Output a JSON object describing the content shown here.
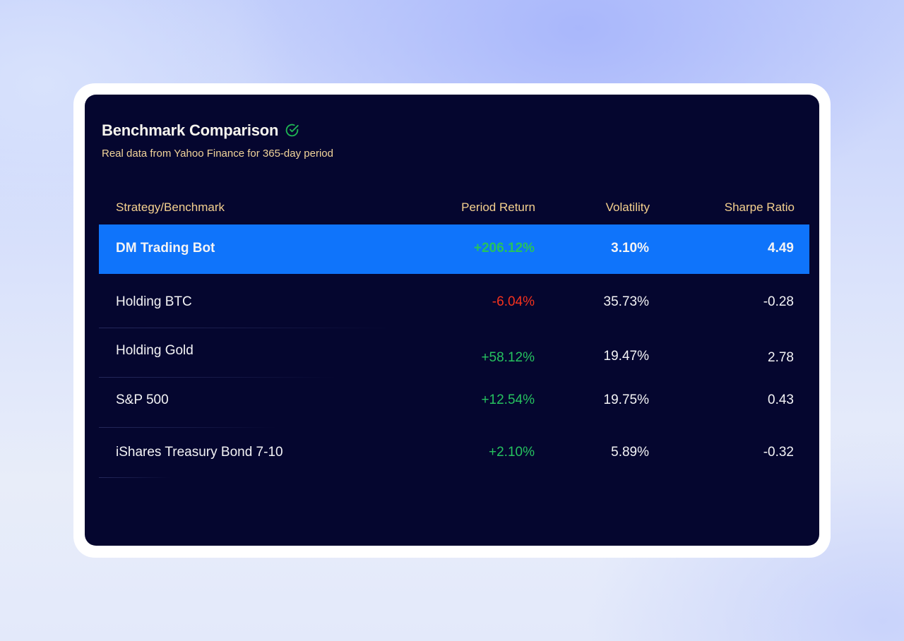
{
  "card": {
    "title": "Benchmark Comparison",
    "subtitle": "Real data from Yahoo Finance for 365-day period",
    "verified_icon": "check-circle-icon"
  },
  "table": {
    "headers": [
      "Strategy/Benchmark",
      "Period Return",
      "Volatility",
      "Sharpe Ratio"
    ],
    "rows": [
      {
        "name": "DM Trading Bot",
        "return": "+206.12%",
        "volatility": "3.10%",
        "sharpe": "4.49",
        "highlighted": true
      },
      {
        "name": "Holding BTC",
        "return": "-6.04%",
        "volatility": "35.73%",
        "sharpe": "-0.28"
      },
      {
        "name": "Holding Gold",
        "return": "+58.12%",
        "volatility": "19.47%",
        "sharpe": "2.78"
      },
      {
        "name": "S&P 500",
        "return": "+12.54%",
        "volatility": "19.75%",
        "sharpe": "0.43"
      },
      {
        "name": "iShares Treasury Bond 7-10",
        "return": "+2.10%",
        "volatility": "5.89%",
        "sharpe": "-0.32"
      }
    ]
  },
  "colors": {
    "panel_background": "#05062f",
    "highlight_row": "#0f74fb",
    "header_text": "#f4d08e",
    "positive": "#26c25f",
    "negative": "#f5321d",
    "check_icon": "#1fb654"
  }
}
